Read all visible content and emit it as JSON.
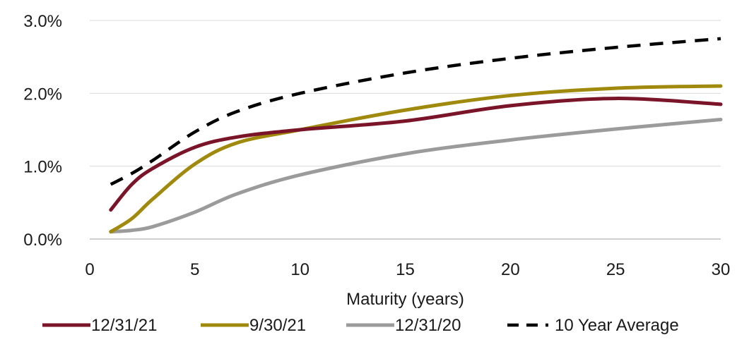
{
  "chart_data": {
    "type": "line",
    "title": "",
    "xlabel": "Maturity (years)",
    "ylabel": "",
    "xlim": [
      0,
      30
    ],
    "ylim": [
      0.0,
      3.0
    ],
    "x_ticks": [
      0,
      5,
      10,
      15,
      20,
      25,
      30
    ],
    "x_tick_labels": [
      "0",
      "5",
      "10",
      "15",
      "20",
      "25",
      "30"
    ],
    "y_ticks": [
      0.0,
      1.0,
      2.0,
      3.0
    ],
    "y_tick_labels": [
      "0.0%",
      "1.0%",
      "2.0%",
      "3.0%"
    ],
    "grid": "horizontal",
    "legend_position": "bottom",
    "series": [
      {
        "name": "12/31/21",
        "color": "#7a1428",
        "style": "solid",
        "x": [
          1,
          2,
          3,
          5,
          7,
          10,
          15,
          20,
          25,
          30
        ],
        "values": [
          0.4,
          0.75,
          0.97,
          1.26,
          1.4,
          1.5,
          1.62,
          1.83,
          1.93,
          1.85
        ]
      },
      {
        "name": "9/30/21",
        "color": "#a08a0e",
        "style": "solid",
        "x": [
          1,
          2,
          3,
          5,
          7,
          10,
          15,
          20,
          25,
          30
        ],
        "values": [
          0.1,
          0.28,
          0.55,
          1.03,
          1.32,
          1.5,
          1.77,
          1.97,
          2.07,
          2.1
        ]
      },
      {
        "name": "12/31/20",
        "color": "#9b9b9b",
        "style": "solid",
        "x": [
          1,
          2,
          3,
          5,
          7,
          10,
          15,
          20,
          25,
          30
        ],
        "values": [
          0.1,
          0.12,
          0.17,
          0.37,
          0.62,
          0.88,
          1.17,
          1.36,
          1.51,
          1.64
        ]
      },
      {
        "name": "10 Year Average",
        "color": "#000000",
        "style": "dashed",
        "x": [
          1,
          2,
          3,
          5,
          7,
          10,
          15,
          20,
          25,
          30
        ],
        "values": [
          0.75,
          0.9,
          1.08,
          1.47,
          1.75,
          2.0,
          2.28,
          2.48,
          2.63,
          2.75
        ]
      }
    ]
  }
}
